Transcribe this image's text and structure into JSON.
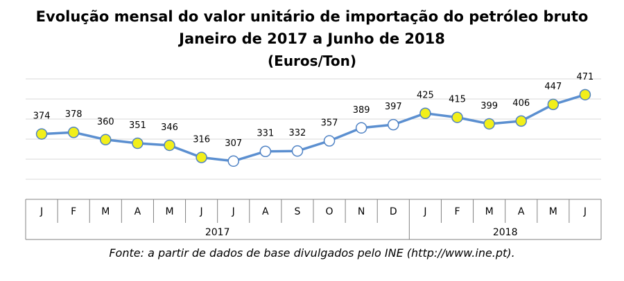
{
  "title": "Evolução mensal do valor unitário de importação do petróleo bruto",
  "subtitle": "Janeiro de 2017 a Junho de 2018",
  "unit_line": "(Euros/Ton)",
  "source": "Fonte: a partir de dados de base divulgados pelo INE (http://www.ine.pt).",
  "colors": {
    "line": "#5b8fd0",
    "marker_highlight": "#f2ef1a",
    "marker_plain": "#ffffff",
    "marker_stroke": "#4f82c4",
    "grid": "#d9d9d9",
    "axis_border": "#808080"
  },
  "chart_data": {
    "type": "line",
    "categories": [
      "J",
      "F",
      "M",
      "A",
      "M",
      "J",
      "J",
      "A",
      "S",
      "O",
      "N",
      "D",
      "J",
      "F",
      "M",
      "A",
      "M",
      "J"
    ],
    "groups": [
      {
        "label": "2017",
        "count": 12
      },
      {
        "label": "2018",
        "count": 6
      }
    ],
    "values": [
      374,
      378,
      360,
      351,
      346,
      316,
      307,
      331,
      332,
      357,
      389,
      397,
      425,
      415,
      399,
      406,
      447,
      471
    ],
    "marker_style": [
      "highlight",
      "highlight",
      "highlight",
      "highlight",
      "highlight",
      "highlight",
      "plain",
      "plain",
      "plain",
      "plain",
      "plain",
      "plain",
      "highlight",
      "highlight",
      "highlight",
      "highlight",
      "highlight",
      "highlight"
    ],
    "data_labels": [
      "374",
      "378",
      "360",
      "351",
      "346",
      "316",
      "307",
      "331",
      "332",
      "357",
      "389",
      "397",
      "425",
      "415",
      "399",
      "406",
      "447",
      "471"
    ],
    "ylim": [
      240,
      510
    ],
    "grid": true,
    "legend": "none"
  }
}
